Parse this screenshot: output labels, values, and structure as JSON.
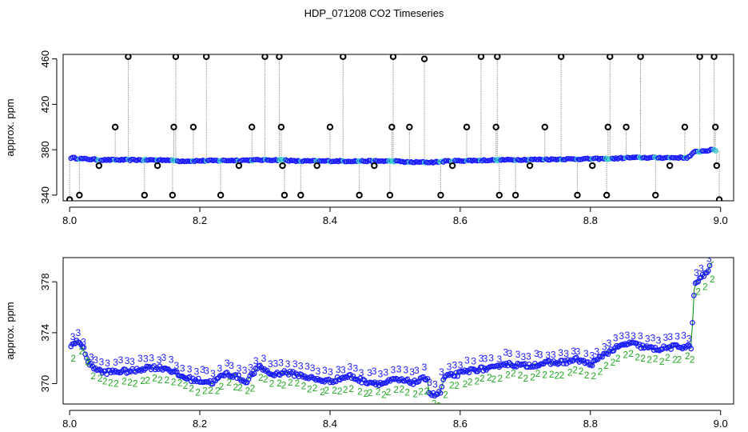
{
  "title": "HDP_071208  CO2 Timeseries",
  "chart_data": [
    {
      "type": "scatter",
      "panel": "top",
      "ylabel": "approx. ppm",
      "xlabel": "",
      "xlim": [
        7.99,
        9.02
      ],
      "ylim": [
        335,
        464
      ],
      "xticks": [
        "8.0",
        "8.2",
        "8.4",
        "8.6",
        "8.8",
        "9.0"
      ],
      "yticks": [
        "340",
        "380",
        "420",
        "460"
      ],
      "baseline": [
        [
          8.0,
          373
        ],
        [
          8.02,
          372
        ],
        [
          8.05,
          371
        ],
        [
          8.15,
          371
        ],
        [
          8.17,
          370
        ],
        [
          8.3,
          371
        ],
        [
          8.33,
          371
        ],
        [
          8.345,
          370
        ],
        [
          8.5,
          370
        ],
        [
          8.52,
          369
        ],
        [
          8.56,
          369
        ],
        [
          8.58,
          370
        ],
        [
          8.66,
          371
        ],
        [
          8.8,
          372
        ],
        [
          8.83,
          372
        ],
        [
          8.86,
          373
        ],
        [
          8.95,
          373
        ],
        [
          8.96,
          378
        ],
        [
          8.99,
          380
        ],
        [
          8.995,
          379
        ]
      ],
      "outliers": [
        [
          8.0,
          336
        ],
        [
          8.015,
          340
        ],
        [
          8.045,
          366
        ],
        [
          8.07,
          400
        ],
        [
          8.09,
          462
        ],
        [
          8.115,
          340
        ],
        [
          8.135,
          366
        ],
        [
          8.158,
          340
        ],
        [
          8.16,
          400
        ],
        [
          8.163,
          462
        ],
        [
          8.19,
          400
        ],
        [
          8.21,
          462
        ],
        [
          8.232,
          340
        ],
        [
          8.26,
          366
        ],
        [
          8.28,
          400
        ],
        [
          8.3,
          462
        ],
        [
          8.322,
          462
        ],
        [
          8.325,
          400
        ],
        [
          8.327,
          366
        ],
        [
          8.33,
          340
        ],
        [
          8.355,
          340
        ],
        [
          8.38,
          366
        ],
        [
          8.4,
          400
        ],
        [
          8.42,
          462
        ],
        [
          8.445,
          340
        ],
        [
          8.468,
          366
        ],
        [
          8.492,
          340
        ],
        [
          8.495,
          400
        ],
        [
          8.497,
          462
        ],
        [
          8.522,
          400
        ],
        [
          8.545,
          460
        ],
        [
          8.57,
          340
        ],
        [
          8.588,
          366
        ],
        [
          8.61,
          400
        ],
        [
          8.632,
          462
        ],
        [
          8.655,
          400
        ],
        [
          8.657,
          462
        ],
        [
          8.66,
          340
        ],
        [
          8.685,
          340
        ],
        [
          8.707,
          366
        ],
        [
          8.73,
          400
        ],
        [
          8.755,
          462
        ],
        [
          8.78,
          340
        ],
        [
          8.803,
          366
        ],
        [
          8.825,
          340
        ],
        [
          8.827,
          400
        ],
        [
          8.83,
          462
        ],
        [
          8.855,
          400
        ],
        [
          8.877,
          462
        ],
        [
          8.9,
          340
        ],
        [
          8.922,
          366
        ],
        [
          8.945,
          400
        ],
        [
          8.968,
          462
        ],
        [
          8.99,
          462
        ],
        [
          8.992,
          400
        ],
        [
          8.994,
          366
        ],
        [
          8.998,
          336
        ]
      ],
      "colors": {
        "points": "#1a1aff",
        "highlight": "#33cccc",
        "outliers": "#000000",
        "lines": "#9a9a9a"
      }
    },
    {
      "type": "scatter",
      "panel": "bottom",
      "ylabel": "approx. ppm",
      "xlabel": "",
      "xlim": [
        7.99,
        9.02
      ],
      "ylim": [
        368.4,
        379.9
      ],
      "xticks": [
        "8.0",
        "8.2",
        "8.4",
        "8.6",
        "8.8",
        "9.0"
      ],
      "yticks": [
        "370",
        "374",
        "378"
      ],
      "series": [
        {
          "values": [
            [
              8.0,
              372.8
            ],
            [
              8.01,
              373.4
            ],
            [
              8.02,
              372.9
            ],
            [
              8.025,
              372.3
            ],
            [
              8.03,
              371.5
            ],
            [
              8.04,
              371.2
            ],
            [
              8.05,
              370.9
            ],
            [
              8.1,
              371.0
            ],
            [
              8.12,
              371.3
            ],
            [
              8.15,
              371.2
            ],
            [
              8.17,
              370.6
            ],
            [
              8.19,
              370.3
            ],
            [
              8.22,
              370.1
            ],
            [
              8.24,
              370.8
            ],
            [
              8.26,
              370.5
            ],
            [
              8.27,
              370.1
            ],
            [
              8.29,
              371.3
            ],
            [
              8.3,
              371.1
            ],
            [
              8.31,
              370.7
            ],
            [
              8.33,
              370.9
            ],
            [
              8.36,
              370.6
            ],
            [
              8.38,
              370.3
            ],
            [
              8.4,
              370.2
            ],
            [
              8.43,
              370.6
            ],
            [
              8.45,
              370.2
            ],
            [
              8.48,
              370.0
            ],
            [
              8.5,
              370.3
            ],
            [
              8.53,
              370.1
            ],
            [
              8.55,
              370.5
            ],
            [
              8.552,
              369.3
            ],
            [
              8.56,
              369.1
            ],
            [
              8.57,
              369.3
            ],
            [
              8.575,
              370.5
            ],
            [
              8.6,
              370.8
            ],
            [
              8.62,
              371.1
            ],
            [
              8.65,
              371.2
            ],
            [
              8.66,
              371.3
            ],
            [
              8.662,
              371.6
            ],
            [
              8.7,
              371.4
            ],
            [
              8.73,
              371.6
            ],
            [
              8.76,
              371.7
            ],
            [
              8.78,
              371.9
            ],
            [
              8.8,
              371.5
            ],
            [
              8.81,
              371.8
            ],
            [
              8.82,
              372.3
            ],
            [
              8.84,
              372.8
            ],
            [
              8.86,
              373.2
            ],
            [
              8.88,
              372.9
            ],
            [
              8.9,
              372.7
            ],
            [
              8.93,
              372.9
            ],
            [
              8.955,
              372.9
            ],
            [
              8.96,
              377.8
            ],
            [
              8.97,
              378.3
            ],
            [
              8.98,
              378.8
            ],
            [
              8.985,
              379.5
            ]
          ]
        }
      ],
      "colors": {
        "points": "#1a1aff",
        "labels_a": "#1a1aff",
        "labels_b": "#22aa22",
        "lines": "#008800"
      }
    }
  ]
}
